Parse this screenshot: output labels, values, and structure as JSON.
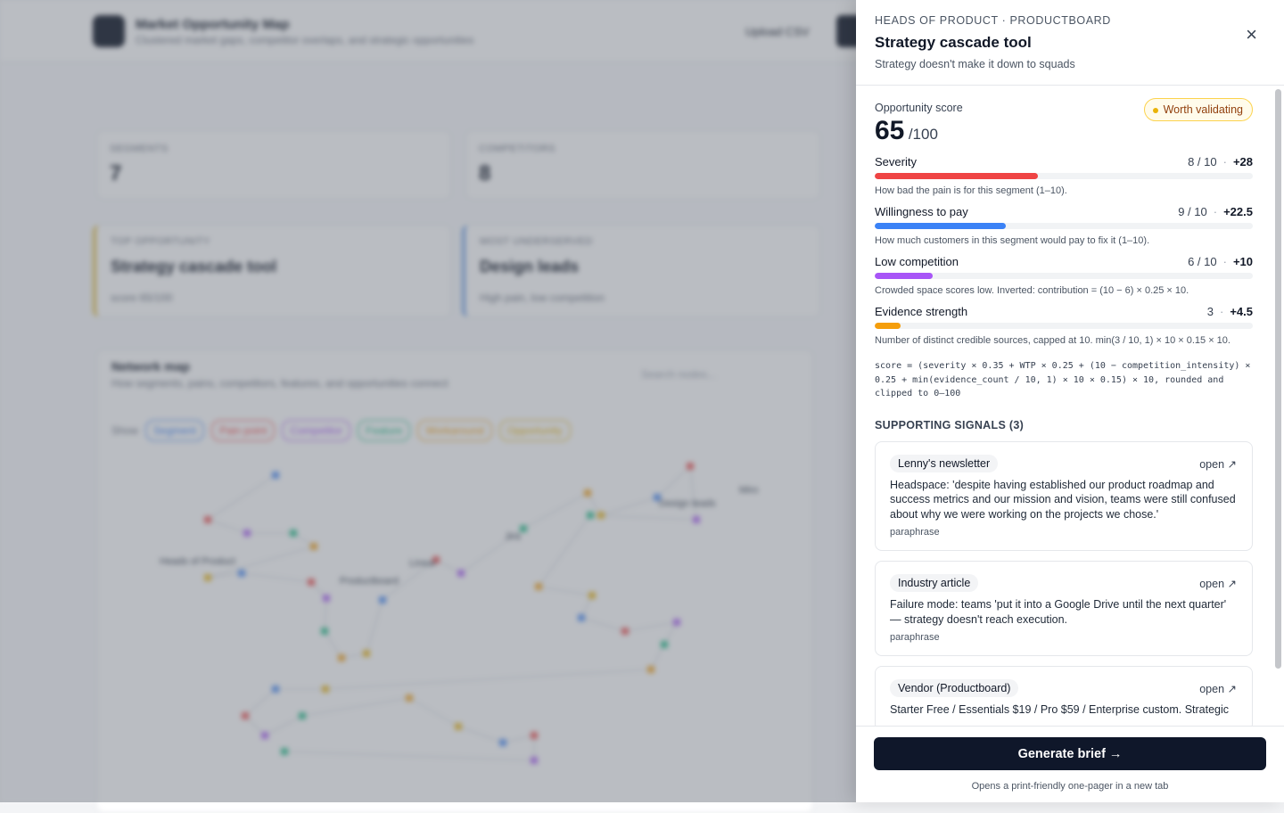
{
  "background": {
    "app_title": "Market Opportunity Map",
    "app_subtitle": "Clustered market gaps, competitor overlaps, and strategic opportunities",
    "upload": "Upload CSV",
    "stats": [
      {
        "label": "SEGMENTS",
        "value": "7"
      },
      {
        "label": "COMPETITORS",
        "value": "8"
      }
    ],
    "highlights": [
      {
        "label": "TOP OPPORTUNITY",
        "title": "Strategy cascade tool",
        "note": "score 65/100",
        "color": "#e5c453"
      },
      {
        "label": "MOST UNDERSERVED",
        "title": "Design leads",
        "note": "High pain, low competition",
        "color": "#7aa7e8"
      }
    ],
    "map": {
      "title": "Network map",
      "subtitle": "How segments, pains, competitors, features, and opportunities connect",
      "search": "Search nodes...",
      "legend_label": "Show",
      "legend": [
        {
          "name": "Segment",
          "color": "#3b82f6"
        },
        {
          "name": "Pain point",
          "color": "#ef4444"
        },
        {
          "name": "Competitor",
          "color": "#a855f7"
        },
        {
          "name": "Feature",
          "color": "#10b981"
        },
        {
          "name": "Workaround",
          "color": "#f59e0b"
        },
        {
          "name": "Opportunity",
          "color": "#eab308"
        }
      ],
      "node_labels": [
        "Heads of Product",
        "Productboard",
        "Linear",
        "Jira",
        "Design leads",
        "Miro"
      ]
    }
  },
  "panel": {
    "eyebrow": "HEADS OF PRODUCT · PRODUCTBOARD",
    "title": "Strategy cascade tool",
    "subtitle": "Strategy doesn't make it down to squads",
    "close": "×",
    "score_label": "Opportunity score",
    "score": 65,
    "score_max": "/100",
    "badge": "Worth validating",
    "separator": "·",
    "factors": [
      {
        "name": "Severity",
        "rating": "8 / 10",
        "contribution": 28,
        "contribution_label": "+28",
        "color": "#ef4444",
        "description": "How bad the pain is for this segment (1–10)."
      },
      {
        "name": "Willingness to pay",
        "rating": "9 / 10",
        "contribution": 22.5,
        "contribution_label": "+22.5",
        "color": "#3b82f6",
        "description": "How much customers in this segment would pay to fix it (1–10)."
      },
      {
        "name": "Low competition",
        "rating": "6 / 10",
        "contribution": 10,
        "contribution_label": "+10",
        "color": "#a855f7",
        "description": "Crowded space scores low. Inverted: contribution = (10 − 6) × 0.25 × 10."
      },
      {
        "name": "Evidence strength",
        "rating": "3",
        "contribution": 4.5,
        "contribution_label": "+4.5",
        "color": "#f59e0b",
        "description": "Number of distinct credible sources, capped at 10. min(3 / 10, 1) × 10 × 0.15 × 10."
      }
    ],
    "formula": "score = (severity × 0.35 + WTP × 0.25 + (10 − competition_intensity) × 0.25 + min(evidence_count / 10, 1) × 10 × 0.15) × 10, rounded and clipped to 0–100",
    "signals_title": "SUPPORTING SIGNALS (3)",
    "signals": [
      {
        "source": "Lenny's newsletter",
        "open": "open ↗",
        "text": "Headspace: 'despite having established our product roadmap and success metrics and our mission and vision, teams were still confused about why we were working on the projects we chose.'",
        "kind": "paraphrase"
      },
      {
        "source": "Industry article",
        "open": "open ↗",
        "text": "Failure mode: teams 'put it into a Google Drive until the next quarter' — strategy doesn't reach execution.",
        "kind": "paraphrase"
      },
      {
        "source": "Vendor (Productboard)",
        "open": "open ↗",
        "text": "Starter Free / Essentials $19 / Pro $59 / Enterprise custom. Strategic",
        "kind": null
      }
    ],
    "button": "Generate brief →",
    "footnote": "Opens a print-friendly one-pager in a new tab"
  }
}
